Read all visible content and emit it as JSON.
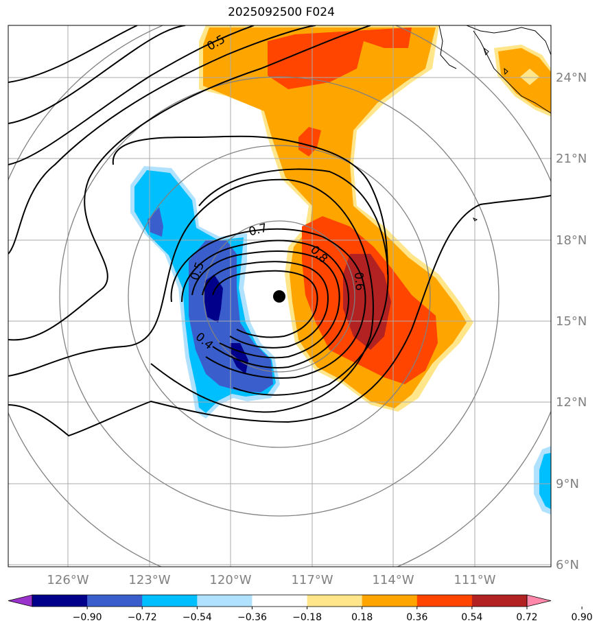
{
  "title": "2025092500 F024",
  "map": {
    "lon_labels": [
      "126°W",
      "123°W",
      "120°W",
      "117°W",
      "114°W",
      "111°W"
    ],
    "lat_labels": [
      "24°N",
      "21°N",
      "18°N",
      "15°N",
      "12°N",
      "9°N",
      "6°N"
    ],
    "center_marker": "storm-center-dot",
    "contour_labels": [
      "0.5",
      "0.7",
      "0.8",
      "0.6",
      "0.5",
      "0.4"
    ]
  },
  "colorbar": {
    "tick_labels": [
      "−0.90",
      "−0.72",
      "−0.54",
      "−0.36",
      "−0.18",
      "0.18",
      "0.36",
      "0.54",
      "0.72",
      "0.90"
    ],
    "colors": [
      "#9933cc",
      "#00008b",
      "#3a5fcd",
      "#00bfff",
      "#b0e2ff",
      "#ffffff",
      "#ffe68a",
      "#ffa500",
      "#ff4500",
      "#b22222",
      "#ff88aa"
    ]
  }
}
